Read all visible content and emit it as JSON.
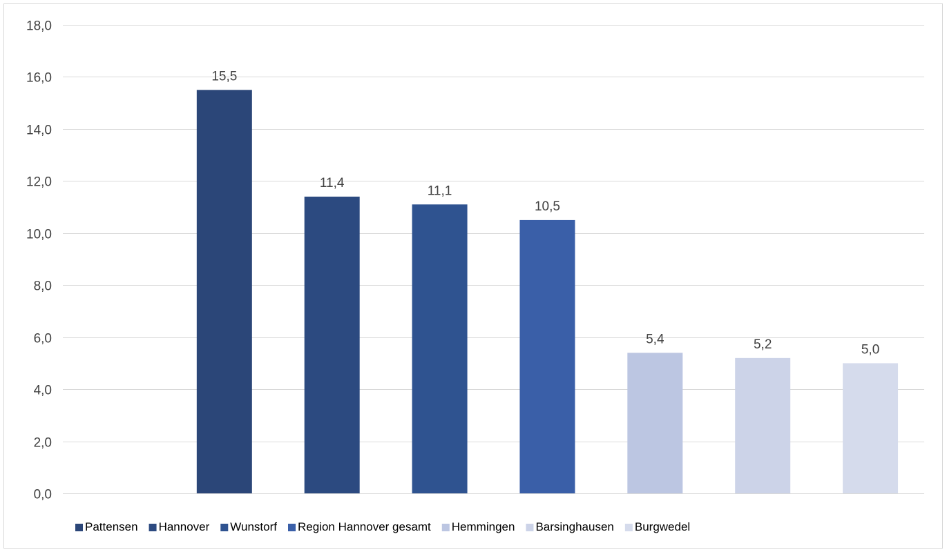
{
  "chart_data": {
    "type": "bar",
    "categories": [
      "Pattensen",
      "Hannover",
      "Wunstorf",
      "Region Hannover gesamt",
      "Hemmingen",
      "Barsinghausen",
      "Burgwedel"
    ],
    "values": [
      15.5,
      11.4,
      11.1,
      10.5,
      5.4,
      5.2,
      5.0
    ],
    "data_labels": [
      "15,5",
      "11,4",
      "11,1",
      "10,5",
      "5,4",
      "5,2",
      "5,0"
    ],
    "colors": [
      "#2b4678",
      "#2c4a80",
      "#2f5390",
      "#3a5fa8",
      "#bcc6e2",
      "#ccd3e8",
      "#d5dbec"
    ],
    "ylim": [
      0,
      18
    ],
    "y_ticks": [
      0,
      2,
      4,
      6,
      8,
      10,
      12,
      14,
      16,
      18
    ],
    "y_tick_labels": [
      "0,0",
      "2,0",
      "4,0",
      "6,0",
      "8,0",
      "10,0",
      "12,0",
      "14,0",
      "16,0",
      "18,0"
    ],
    "grid": true,
    "gridline_color": "#d9d9d9",
    "legend_position": "bottom",
    "title": "",
    "xlabel": "",
    "ylabel": ""
  }
}
